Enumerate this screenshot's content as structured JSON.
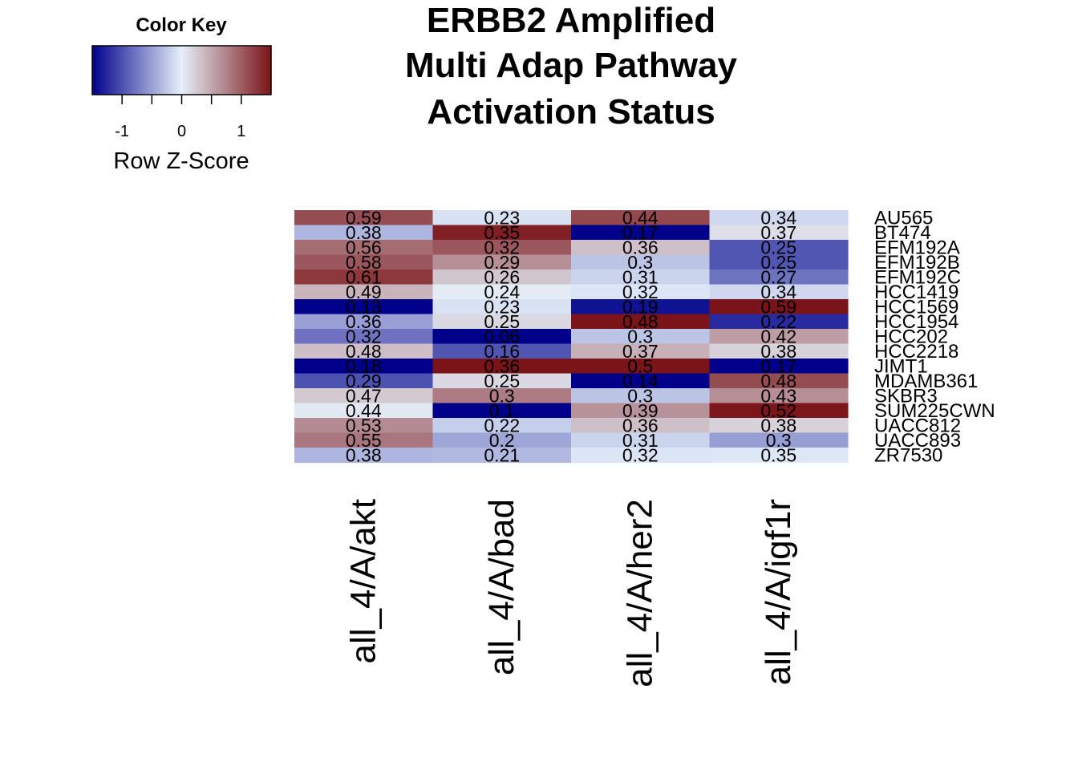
{
  "title_lines": [
    "ERBB2 Amplified",
    "Multi Adap Pathway",
    "Activation Status"
  ],
  "color_key": {
    "title": "Color Key",
    "xlabel": "Row Z-Score",
    "ticks": [
      "-1",
      "0",
      "1"
    ],
    "range": [
      -1.5,
      1.5
    ],
    "low_color": "#00008b",
    "mid_color": "#e6f0fa",
    "high_color": "#7a1418"
  },
  "chart_data": {
    "type": "heatmap",
    "title": "ERBB2 Amplified Multi Adap Pathway Activation Status",
    "columns": [
      "all_4/A/akt",
      "all_4/A/bad",
      "all_4/A/her2",
      "all_4/A/igf1r"
    ],
    "rows": [
      "AU565",
      "BT474",
      "EFM192A",
      "EFM192B",
      "EFM192C",
      "HCC1419",
      "HCC1569",
      "HCC1954",
      "HCC202",
      "HCC2218",
      "JIMT1",
      "MDAMB361",
      "SKBR3",
      "SUM225CWN",
      "UACC812",
      "UACC893",
      "ZR7530"
    ],
    "values": [
      [
        "0.59",
        "0.23",
        "0.44",
        "0.34"
      ],
      [
        "0.38",
        "0.35",
        "0.17",
        "0.37"
      ],
      [
        "0.56",
        "0.32",
        "0.36",
        "0.25"
      ],
      [
        "0.58",
        "0.29",
        "0.3",
        "0.25"
      ],
      [
        "0.61",
        "0.26",
        "0.31",
        "0.27"
      ],
      [
        "0.49",
        "0.24",
        "0.32",
        "0.34"
      ],
      [
        "0.13",
        "0.23",
        "0.19",
        "0.59"
      ],
      [
        "0.36",
        "0.25",
        "0.48",
        "0.22"
      ],
      [
        "0.32",
        "0.06",
        "0.3",
        "0.42"
      ],
      [
        "0.48",
        "0.16",
        "0.37",
        "0.38"
      ],
      [
        "0.18",
        "0.36",
        "0.5",
        "0.17"
      ],
      [
        "0.29",
        "0.25",
        "0.14",
        "0.48"
      ],
      [
        "0.47",
        "0.3",
        "0.3",
        "0.43"
      ],
      [
        "0.44",
        "0.1",
        "0.39",
        "0.52"
      ],
      [
        "0.53",
        "0.22",
        "0.36",
        "0.38"
      ],
      [
        "0.55",
        "0.2",
        "0.31",
        "0.3"
      ],
      [
        "0.38",
        "0.21",
        "0.32",
        "0.35"
      ]
    ],
    "color_scale": "row z-score, blue (low) - white - dark red (high)"
  }
}
